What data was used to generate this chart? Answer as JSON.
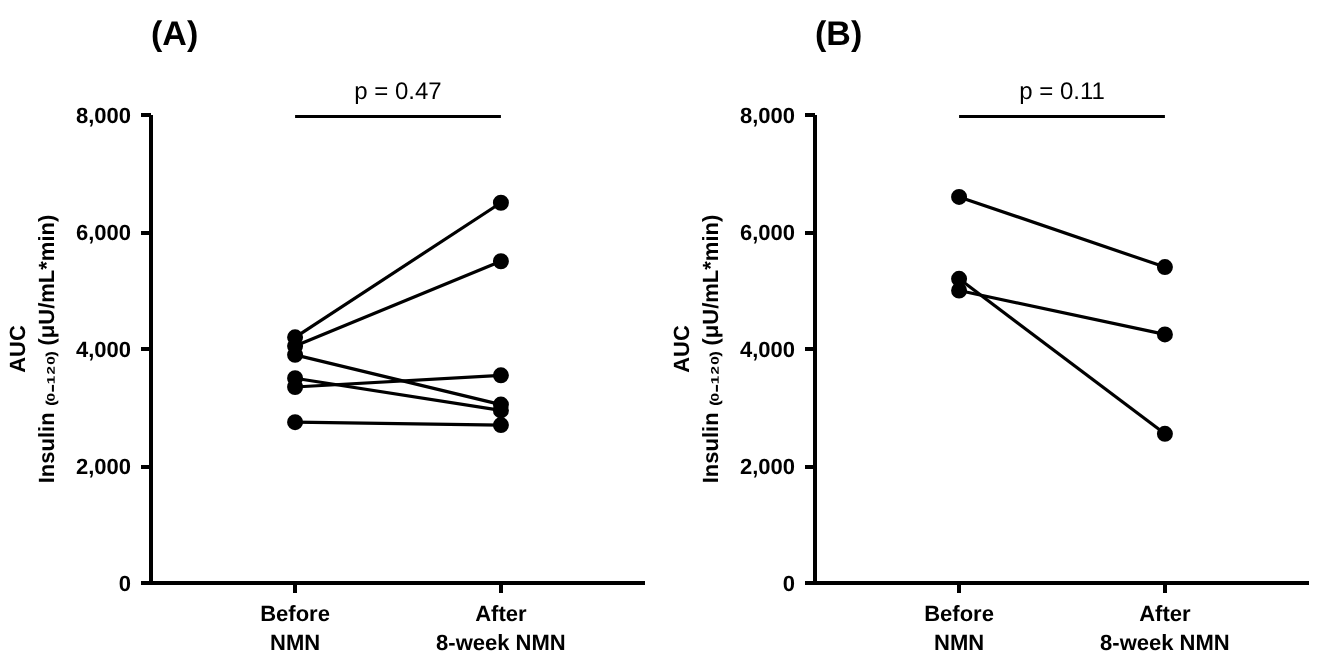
{
  "chart_data": [
    {
      "type": "line",
      "title": "(A)",
      "ylabel": "AUC\nInsulin ₍₀₋₁₂₀₎ (μU/mL*min)",
      "categories": [
        "Before\nNMN",
        "After\n8-week NMN"
      ],
      "marker": "circle",
      "line_style": "solid",
      "grid": false,
      "ylim": [
        0,
        8000
      ],
      "yticks": [
        0,
        {
          "value": 2000,
          "label": "2,000"
        },
        {
          "value": 4000,
          "label": "4,000"
        },
        {
          "value": 6000,
          "label": "6,000"
        },
        {
          "value": 8000,
          "label": "8,000"
        }
      ],
      "annotations": [
        "p = 0.47"
      ],
      "series": [
        {
          "color": "#000000",
          "values": [
            4200,
            6500
          ]
        },
        {
          "color": "#000000",
          "values": [
            4050,
            5500
          ]
        },
        {
          "color": "#000000",
          "values": [
            3900,
            3050
          ]
        },
        {
          "color": "#000000",
          "values": [
            3500,
            2950
          ]
        },
        {
          "color": "#000000",
          "values": [
            3350,
            3550
          ]
        },
        {
          "color": "#000000",
          "values": [
            2750,
            2700
          ]
        }
      ]
    },
    {
      "type": "line",
      "title": "(B)",
      "ylabel": "AUC\nInsulin ₍₀₋₁₂₀₎ (μU/mL*min)",
      "categories": [
        "Before\nNMN",
        "After\n8-week NMN"
      ],
      "marker": "circle",
      "line_style": "solid",
      "grid": false,
      "ylim": [
        0,
        8000
      ],
      "yticks": [
        0,
        {
          "value": 2000,
          "label": "2,000"
        },
        {
          "value": 4000,
          "label": "4,000"
        },
        {
          "value": 6000,
          "label": "6,000"
        },
        {
          "value": 8000,
          "label": "8,000"
        }
      ],
      "annotations": [
        "p = 0.11"
      ],
      "series": [
        {
          "color": "#000000",
          "values": [
            6600,
            5400
          ]
        },
        {
          "color": "#000000",
          "values": [
            5000,
            4250
          ]
        },
        {
          "color": "#000000",
          "values": [
            5200,
            2550
          ]
        }
      ]
    }
  ]
}
